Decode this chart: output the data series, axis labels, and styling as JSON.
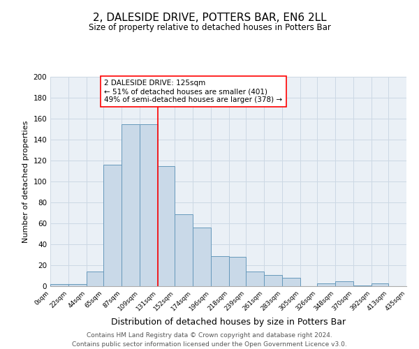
{
  "title": "2, DALESIDE DRIVE, POTTERS BAR, EN6 2LL",
  "subtitle": "Size of property relative to detached houses in Potters Bar",
  "xlabel": "Distribution of detached houses by size in Potters Bar",
  "ylabel": "Number of detached properties",
  "bar_edges": [
    0,
    22,
    44,
    65,
    87,
    109,
    131,
    152,
    174,
    196,
    218,
    239,
    261,
    283,
    305,
    326,
    348,
    370,
    392,
    413,
    435
  ],
  "bar_heights": [
    2,
    2,
    14,
    116,
    155,
    155,
    115,
    69,
    56,
    29,
    28,
    14,
    11,
    8,
    0,
    3,
    5,
    1,
    3,
    0
  ],
  "bar_color": "#c9d9e8",
  "bar_edge_color": "#6699bb",
  "property_line_x": 131,
  "property_line_color": "red",
  "annotation_text": "2 DALESIDE DRIVE: 125sqm\n← 51% of detached houses are smaller (401)\n49% of semi-detached houses are larger (378) →",
  "annotation_box_color": "white",
  "annotation_box_edge_color": "red",
  "ylim": [
    0,
    200
  ],
  "yticks": [
    0,
    20,
    40,
    60,
    80,
    100,
    120,
    140,
    160,
    180,
    200
  ],
  "xtick_labels": [
    "0sqm",
    "22sqm",
    "44sqm",
    "65sqm",
    "87sqm",
    "109sqm",
    "131sqm",
    "152sqm",
    "174sqm",
    "196sqm",
    "218sqm",
    "239sqm",
    "261sqm",
    "283sqm",
    "305sqm",
    "326sqm",
    "348sqm",
    "370sqm",
    "392sqm",
    "413sqm",
    "435sqm"
  ],
  "grid_color": "#ccd8e4",
  "background_color": "#eaf0f6",
  "footer_line1": "Contains HM Land Registry data © Crown copyright and database right 2024.",
  "footer_line2": "Contains public sector information licensed under the Open Government Licence v3.0.",
  "title_fontsize": 11,
  "subtitle_fontsize": 8.5,
  "xlabel_fontsize": 9,
  "ylabel_fontsize": 8,
  "footer_fontsize": 6.5,
  "annotation_fontsize": 7.5
}
